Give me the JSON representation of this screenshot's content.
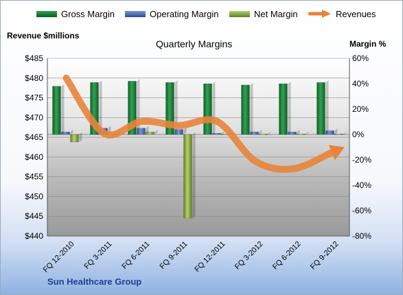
{
  "chart_data": {
    "type": "bar",
    "title": "Quarterly Margins",
    "ylabel_left": "Revenue $millions",
    "ylabel_right": "Margin %",
    "categories": [
      "FQ 12-2010",
      "FQ 3-2011",
      "FQ 6-2011",
      "FQ 9-2011",
      "FQ 12-2011",
      "FQ 3-2012",
      "FQ 6-2012",
      "FQ 9-2012"
    ],
    "left_axis": {
      "min": 440,
      "max": 485,
      "ticks": [
        "$440",
        "$445",
        "$450",
        "$455",
        "$460",
        "$465",
        "$470",
        "$475",
        "$480",
        "$485"
      ]
    },
    "right_axis": {
      "min": -80,
      "max": 60,
      "ticks": [
        "-80%",
        "-60%",
        "-40%",
        "-20%",
        "0%",
        "20%",
        "40%",
        "60%"
      ]
    },
    "series": [
      {
        "name": "Gross Margin",
        "axis": "right",
        "kind": "bar",
        "color": "#1f8a3a",
        "values": [
          38,
          41,
          42,
          41,
          40,
          39,
          40,
          41
        ]
      },
      {
        "name": "Operating Margin",
        "axis": "right",
        "kind": "bar",
        "color": "#4f6fb8",
        "values": [
          2,
          5,
          5,
          4,
          1,
          2,
          2,
          3
        ]
      },
      {
        "name": "Net Margin",
        "axis": "right",
        "kind": "bar",
        "color": "#8fb04a",
        "values": [
          -6,
          0.5,
          2,
          -66,
          0.5,
          0.5,
          0.5,
          0.5
        ]
      },
      {
        "name": "Revenues",
        "axis": "left",
        "kind": "line",
        "color": "#e8843a",
        "values": [
          480,
          466,
          469,
          468,
          469,
          459,
          457,
          461
        ]
      }
    ],
    "legend_position": "top",
    "footer": "Sun Healthcare Group"
  }
}
